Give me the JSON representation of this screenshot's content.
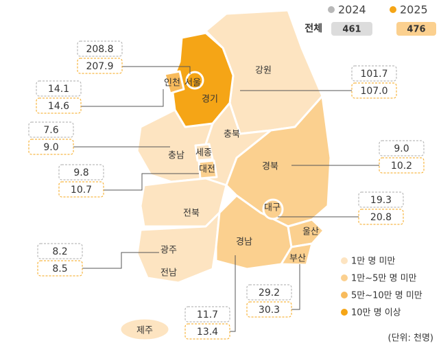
{
  "legend_years": [
    {
      "label": "2024",
      "color": "#b8b8b8"
    },
    {
      "label": "2025",
      "color": "#f5a516"
    }
  ],
  "total": {
    "label": "전체",
    "values": [
      "461",
      "476"
    ]
  },
  "regions": [
    {
      "label": "서울",
      "values": [
        "208.8",
        "207.9"
      ]
    },
    {
      "label": "인천",
      "values": [
        "14.1",
        "14.6"
      ]
    },
    {
      "label": "경기",
      "values": [
        "101.7",
        "107.0"
      ]
    },
    {
      "label": "충남",
      "values": [
        "7.6",
        "9.0"
      ]
    },
    {
      "label": "대전",
      "values": [
        "9.8",
        "10.7"
      ]
    },
    {
      "label": "경북",
      "values": [
        "9.0",
        "10.2"
      ]
    },
    {
      "label": "대구",
      "values": [
        "19.3",
        "20.8"
      ]
    },
    {
      "label": "광주",
      "values": [
        "8.2",
        "8.5"
      ]
    },
    {
      "label": "부산",
      "values": [
        "29.2",
        "30.3"
      ]
    },
    {
      "label": "경남",
      "values": [
        "11.7",
        "13.4"
      ]
    }
  ],
  "map_labels": [
    "강원",
    "충북",
    "세종",
    "전북",
    "전남",
    "울산",
    "제주"
  ],
  "color_legend": [
    {
      "label": "1만 명 미만",
      "color": "#fde4c1"
    },
    {
      "label": "1만~5만 명 미만",
      "color": "#fbd08f"
    },
    {
      "label": "5만~10만 명 미만",
      "color": "#f8bb5c"
    },
    {
      "label": "10만 명 이상",
      "color": "#f5a516"
    }
  ],
  "unit": "(단위: 천명)"
}
